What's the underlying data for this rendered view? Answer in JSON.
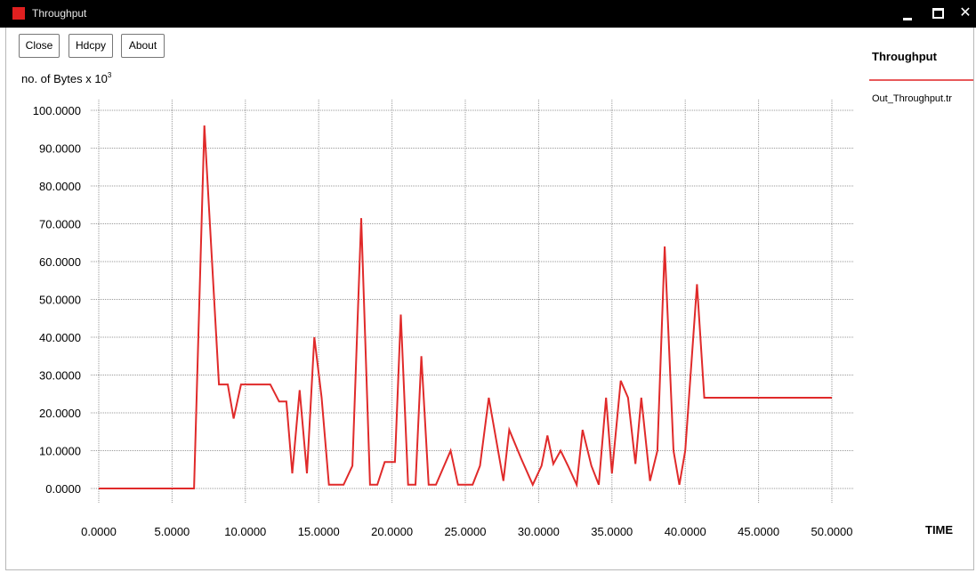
{
  "window": {
    "title": "Throughput",
    "controls": {
      "minimize": "minimize",
      "maximize": "maximize",
      "close": "✕"
    }
  },
  "toolbar": {
    "close_label": "Close",
    "hdcpy_label": "Hdcpy",
    "about_label": "About"
  },
  "colors": {
    "titlebar": "#000000",
    "series": "#e02a2a",
    "legend_line": "#e8595a",
    "grid": "#9a9a9a"
  },
  "chart_data": {
    "type": "line",
    "ylabel_text": "no. of Bytes x 10",
    "ylabel_exponent": "3",
    "xlabel": "TIME",
    "xlim": [
      0,
      50
    ],
    "ylim": [
      0,
      100
    ],
    "grid": true,
    "legend_title": "Throughput",
    "legend_position": "right",
    "x_tick_labels": [
      "0.0000",
      "5.0000",
      "10.0000",
      "15.0000",
      "20.0000",
      "25.0000",
      "30.0000",
      "35.0000",
      "40.0000",
      "45.0000",
      "50.0000"
    ],
    "y_tick_labels": [
      "0.0000",
      "10.0000",
      "20.0000",
      "30.0000",
      "40.0000",
      "50.0000",
      "60.0000",
      "70.0000",
      "80.0000",
      "90.0000",
      "100.0000"
    ],
    "series": [
      {
        "name": "Out_Throughput.tr",
        "x": [
          0,
          6.2,
          6.5,
          7.2,
          8.2,
          8.8,
          9.2,
          9.7,
          11.7,
          12.3,
          12.8,
          13.2,
          13.7,
          14.2,
          14.7,
          15.2,
          15.7,
          16.7,
          17.3,
          17.9,
          18.5,
          19.0,
          19.5,
          20.2,
          20.6,
          21.1,
          21.6,
          22.0,
          22.5,
          23.0,
          24.0,
          24.5,
          25.5,
          26.0,
          26.6,
          27.6,
          28.0,
          28.8,
          29.6,
          30.2,
          30.6,
          31.0,
          31.5,
          32.0,
          32.6,
          33.0,
          33.6,
          34.1,
          34.6,
          35.0,
          35.6,
          36.1,
          36.6,
          37.0,
          37.6,
          38.1,
          38.6,
          39.2,
          39.6,
          40.0,
          40.8,
          41.3,
          50.0
        ],
        "y": [
          0,
          0,
          0,
          96,
          27.5,
          27.5,
          18.5,
          27.5,
          27.5,
          23,
          23,
          4,
          26,
          4,
          40,
          24,
          1,
          1,
          6,
          71.5,
          1,
          1,
          7,
          7,
          46,
          1,
          1,
          35,
          1,
          1,
          10,
          1,
          1,
          6,
          24,
          2,
          15.5,
          8,
          1,
          6,
          14,
          6.5,
          10,
          6,
          1,
          15.5,
          6,
          1,
          24,
          4,
          28.5,
          24,
          6.5,
          24,
          2,
          10,
          64,
          10,
          1,
          10,
          54,
          24,
          24
        ]
      }
    ]
  }
}
